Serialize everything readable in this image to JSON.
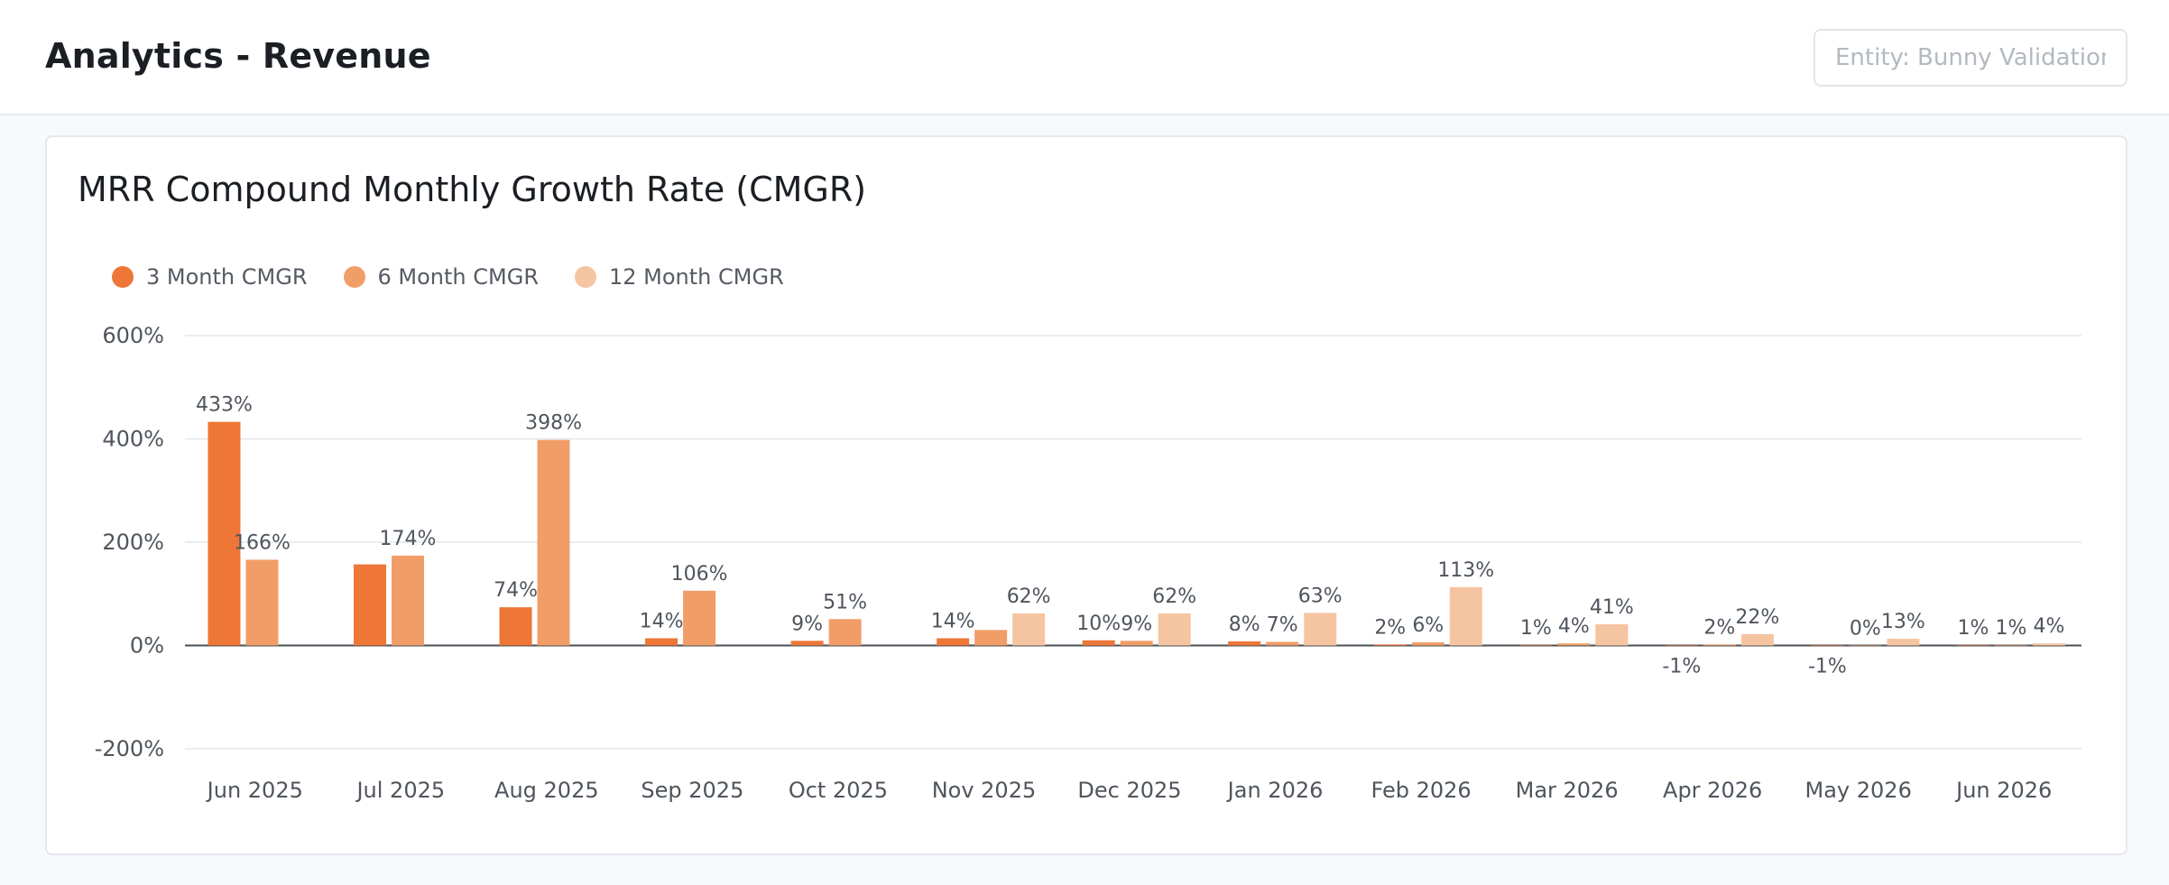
{
  "header": {
    "title": "Analytics - Revenue",
    "entity_placeholder": "Entity: Bunny Validation"
  },
  "colors": {
    "m3": "#ee7637",
    "m6": "#f19d67",
    "m12": "#f5c4a0",
    "grid": "#e3e7ec",
    "zero_line": "#4a4f55"
  },
  "chart_data": {
    "type": "bar",
    "title": "MRR Compound Monthly Growth Rate (CMGR)",
    "legend_position": "top-left",
    "grid": true,
    "ylim": [
      -200,
      600
    ],
    "yticks": [
      -200,
      0,
      200,
      400,
      600
    ],
    "ytick_labels": [
      "-200%",
      "0%",
      "200%",
      "400%",
      "600%"
    ],
    "categories": [
      "Jun 2025",
      "Jul 2025",
      "Aug 2025",
      "Sep 2025",
      "Oct 2025",
      "Nov 2025",
      "Dec 2025",
      "Jan 2026",
      "Feb 2026",
      "Mar 2026",
      "Apr 2026",
      "May 2026",
      "Jun 2026"
    ],
    "series": [
      {
        "name": "3 Month CMGR",
        "values": [
          433,
          157,
          74,
          14,
          9,
          14,
          10,
          8,
          2,
          1,
          -1,
          -1,
          1
        ],
        "labels": [
          "433%",
          "",
          "74%",
          "14%",
          "9%",
          "14%",
          "10%",
          "8%",
          "2%",
          "1%",
          "-1%",
          "-1%",
          "1%"
        ]
      },
      {
        "name": "6 Month CMGR",
        "values": [
          166,
          174,
          398,
          106,
          51,
          30,
          9,
          7,
          6,
          4,
          2,
          0,
          1
        ],
        "labels": [
          "166%",
          "174%",
          "398%",
          "106%",
          "51%",
          "",
          "9%",
          "7%",
          "6%",
          "4%",
          "2%",
          "0%",
          "1%"
        ]
      },
      {
        "name": "12 Month CMGR",
        "values": [
          null,
          null,
          null,
          null,
          null,
          62,
          62,
          63,
          113,
          41,
          22,
          13,
          4
        ],
        "labels": [
          "",
          "",
          "",
          "",
          "",
          "62%",
          "62%",
          "63%",
          "113%",
          "41%",
          "22%",
          "13%",
          "4%"
        ]
      }
    ]
  }
}
